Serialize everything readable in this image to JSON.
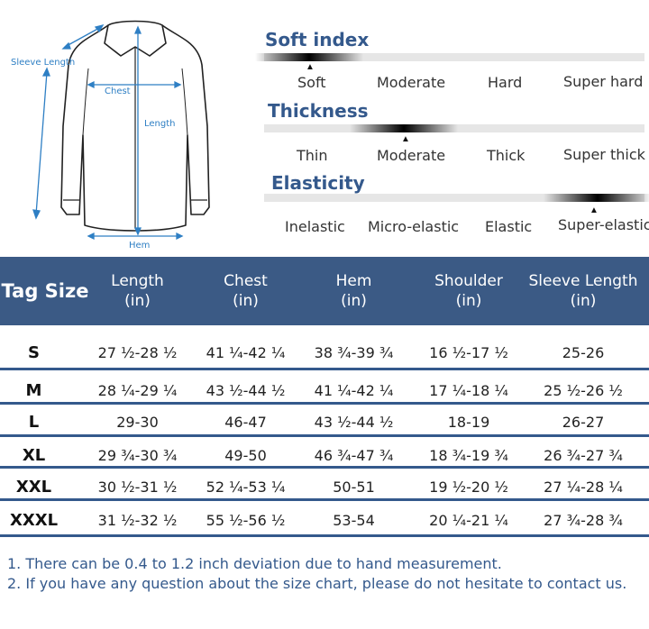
{
  "diagram": {
    "labels": {
      "sleeve_length": "Sleeve Length",
      "chest": "Chest",
      "length": "Length",
      "hem": "Hem"
    }
  },
  "properties": [
    {
      "title": "Soft index",
      "options": [
        "Soft",
        "Moderate",
        "Hard",
        "Super hard"
      ],
      "selected": "Soft"
    },
    {
      "title": "Thickness",
      "options": [
        "Thin",
        "Moderate",
        "Thick",
        "Super thick"
      ],
      "selected": "Moderate"
    },
    {
      "title": "Elasticity",
      "options": [
        "Inelastic",
        "Micro-elastic",
        "Elastic",
        "Super-elastic"
      ],
      "selected": "Super-elastic"
    }
  ],
  "table": {
    "headers": [
      {
        "line1": "Tag Size",
        "line2": ""
      },
      {
        "line1": "Length",
        "line2": "(in)"
      },
      {
        "line1": "Chest",
        "line2": "(in)"
      },
      {
        "line1": "Hem",
        "line2": "(in)"
      },
      {
        "line1": "Shoulder",
        "line2": "(in)"
      },
      {
        "line1": "Sleeve Length",
        "line2": "(in)"
      }
    ],
    "rows": [
      [
        "S",
        "27 ½-28 ½",
        "41 ¼-42 ¼",
        "38 ¾-39 ¾",
        "16 ½-17 ½",
        "25-26"
      ],
      [
        "M",
        "28 ¼-29 ¼",
        "43 ½-44 ½",
        "41 ¼-42 ¼",
        "17 ¼-18 ¼",
        "25 ½-26 ½"
      ],
      [
        "L",
        "29-30",
        "46-47",
        "43 ½-44 ½",
        "18-19",
        "26-27"
      ],
      [
        "XL",
        "29 ¾-30 ¾",
        "49-50",
        "46 ¾-47 ¾",
        "18 ¾-19 ¾",
        "26 ¾-27 ¾"
      ],
      [
        "XXL",
        "30 ½-31 ½",
        "52 ¼-53 ¼",
        "50-51",
        "19 ½-20 ½",
        "27 ¼-28 ¼"
      ],
      [
        "XXXL",
        "31 ½-32 ½",
        "55 ½-56 ½",
        "53-54",
        "20 ¼-21 ¼",
        "27 ¾-28 ¾"
      ]
    ]
  },
  "notes": [
    "1. There can be 0.4 to 1.2 inch deviation due to hand measurement.",
    "2. If you have any question about the size chart, please do not hesitate to contact us."
  ],
  "colors": {
    "header_bg": "#3b5a85",
    "title_blue": "#34598c",
    "measure_blue": "#2e7fc4"
  }
}
